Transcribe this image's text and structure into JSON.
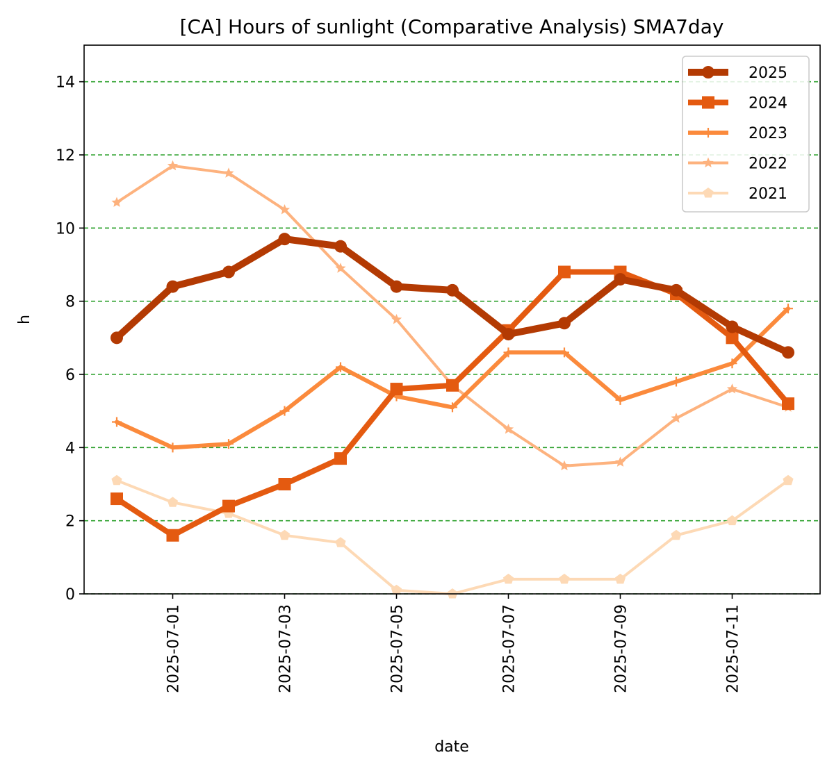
{
  "chart_data": {
    "type": "line",
    "title": "[CA] Hours of sunlight (Comparative Analysis) SMA7day",
    "xlabel": "date",
    "ylabel": "h",
    "x": [
      "2025-06-30",
      "2025-07-01",
      "2025-07-02",
      "2025-07-03",
      "2025-07-04",
      "2025-07-05",
      "2025-07-06",
      "2025-07-07",
      "2025-07-08",
      "2025-07-09",
      "2025-07-10",
      "2025-07-11",
      "2025-07-12"
    ],
    "x_ticks": [
      "2025-07-01",
      "2025-07-03",
      "2025-07-05",
      "2025-07-07",
      "2025-07-09",
      "2025-07-11"
    ],
    "ylim": [
      0,
      15
    ],
    "y_ticks": [
      0,
      2,
      4,
      6,
      8,
      10,
      12,
      14
    ],
    "grid": "y-axis dashed green",
    "grid_color": "#2ca02c",
    "legend_position": "top-right",
    "series": [
      {
        "name": "2025",
        "color": "#b33a03",
        "marker": "circle",
        "values": [
          7.0,
          8.4,
          8.8,
          9.7,
          9.5,
          8.4,
          8.3,
          7.1,
          7.4,
          8.6,
          8.3,
          7.3,
          6.6
        ]
      },
      {
        "name": "2024",
        "color": "#e45a10",
        "marker": "square",
        "values": [
          2.6,
          1.6,
          2.4,
          3.0,
          3.7,
          5.6,
          5.7,
          7.2,
          8.8,
          8.8,
          8.2,
          7.0,
          5.2
        ]
      },
      {
        "name": "2023",
        "color": "#fb8a3c",
        "marker": "plus",
        "values": [
          4.7,
          4.0,
          4.1,
          5.0,
          6.2,
          5.4,
          5.1,
          6.6,
          6.6,
          5.3,
          5.8,
          6.3,
          7.8
        ]
      },
      {
        "name": "2022",
        "color": "#fdb27e",
        "marker": "star",
        "values": [
          10.7,
          11.7,
          11.5,
          10.5,
          8.9,
          7.5,
          5.7,
          4.5,
          3.5,
          3.6,
          4.8,
          5.6,
          5.1
        ]
      },
      {
        "name": "2021",
        "color": "#fdd9b5",
        "marker": "pentagon",
        "values": [
          3.1,
          2.5,
          2.2,
          1.6,
          1.4,
          0.1,
          0.0,
          0.4,
          0.4,
          0.4,
          1.6,
          2.0,
          3.1
        ]
      }
    ]
  }
}
